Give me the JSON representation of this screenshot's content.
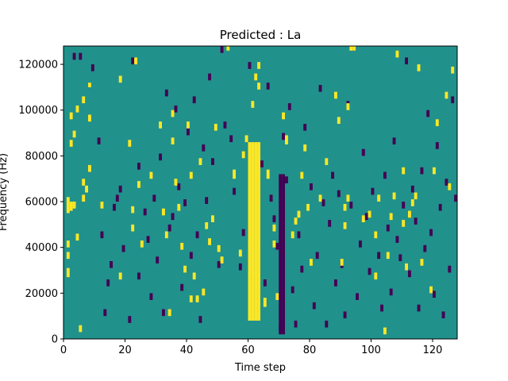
{
  "chart_data": {
    "type": "heatmap",
    "title": "Predicted : La",
    "xlabel": "Time step",
    "ylabel": "Frequency (Hz)",
    "xlim": [
      0,
      128
    ],
    "ylim": [
      0,
      128000
    ],
    "xticks": [
      0,
      20,
      40,
      60,
      80,
      100,
      120
    ],
    "yticks": [
      0,
      20000,
      40000,
      60000,
      80000,
      100000,
      120000
    ],
    "xtick_labels": [
      "0",
      "20",
      "40",
      "60",
      "80",
      "100",
      "120"
    ],
    "ytick_labels": [
      "0",
      "20000",
      "40000",
      "60000",
      "80000",
      "100000",
      "120000"
    ],
    "grid": false,
    "colormap": "viridis",
    "background_value": 0,
    "colors": {
      "low": "#440154",
      "mid": "#21918c",
      "high": "#fde725"
    },
    "grid_shape": {
      "time_steps": 128,
      "frequency_bins": 128,
      "bin_height_hz": 1000
    },
    "high_cells": [
      [
        1,
        27,
        31
      ],
      [
        1,
        35,
        38
      ],
      [
        1,
        55,
        62
      ],
      [
        1,
        40,
        43
      ],
      [
        2,
        56,
        60
      ],
      [
        2,
        84,
        87
      ],
      [
        2,
        96,
        99
      ],
      [
        3,
        88,
        91
      ],
      [
        3,
        57,
        60
      ],
      [
        4,
        99,
        102
      ],
      [
        4,
        43,
        46
      ],
      [
        5,
        3,
        6
      ],
      [
        6,
        103,
        106
      ],
      [
        6,
        60,
        63
      ],
      [
        6,
        67,
        70
      ],
      [
        7,
        64,
        67
      ],
      [
        8,
        73,
        76
      ],
      [
        8,
        95,
        98
      ],
      [
        8,
        110,
        112
      ],
      [
        12,
        57,
        60
      ],
      [
        18,
        112,
        115
      ],
      [
        18,
        26,
        29
      ],
      [
        21,
        84,
        87
      ],
      [
        22,
        47,
        50
      ],
      [
        22,
        55,
        58
      ],
      [
        23,
        120,
        123
      ],
      [
        24,
        66,
        69
      ],
      [
        25,
        40,
        43
      ],
      [
        28,
        70,
        73
      ],
      [
        31,
        92,
        95
      ],
      [
        32,
        54,
        57
      ],
      [
        33,
        44,
        47
      ],
      [
        34,
        10,
        13
      ],
      [
        35,
        85,
        88
      ],
      [
        35,
        97,
        100
      ],
      [
        36,
        67,
        70
      ],
      [
        37,
        56,
        59
      ],
      [
        38,
        39,
        42
      ],
      [
        39,
        29,
        32
      ],
      [
        40,
        92,
        95
      ],
      [
        41,
        70,
        73
      ],
      [
        41,
        16,
        19
      ],
      [
        42,
        26,
        29
      ],
      [
        43,
        16,
        19
      ],
      [
        44,
        76,
        79
      ],
      [
        45,
        19,
        22
      ],
      [
        46,
        48,
        51
      ],
      [
        47,
        41,
        44
      ],
      [
        48,
        51,
        54
      ],
      [
        49,
        91,
        94
      ],
      [
        50,
        38,
        41
      ],
      [
        51,
        33,
        36
      ],
      [
        53,
        126,
        128
      ],
      [
        55,
        70,
        74
      ],
      [
        57,
        36,
        39
      ],
      [
        58,
        79,
        82
      ],
      [
        59,
        86,
        89
      ],
      [
        61,
        101,
        104
      ],
      [
        62,
        113,
        116
      ],
      [
        63,
        109,
        112
      ],
      [
        63,
        118,
        121
      ],
      [
        65,
        14,
        18
      ],
      [
        66,
        70,
        74
      ],
      [
        68,
        40,
        43
      ],
      [
        68,
        47,
        50
      ],
      [
        69,
        17,
        20
      ],
      [
        71,
        96,
        99
      ],
      [
        72,
        85,
        89
      ],
      [
        74,
        44,
        47
      ],
      [
        75,
        50,
        53
      ],
      [
        76,
        53,
        56
      ],
      [
        77,
        70,
        73
      ],
      [
        78,
        82,
        85
      ],
      [
        79,
        56,
        59
      ],
      [
        80,
        32,
        35
      ],
      [
        83,
        60,
        63
      ],
      [
        85,
        76,
        79
      ],
      [
        88,
        105,
        108
      ],
      [
        89,
        94,
        97
      ],
      [
        90,
        32,
        35
      ],
      [
        91,
        48,
        51
      ],
      [
        91,
        56,
        59
      ],
      [
        92,
        60,
        63
      ],
      [
        92,
        100,
        103
      ],
      [
        93,
        126,
        128
      ],
      [
        94,
        126,
        128
      ],
      [
        97,
        51,
        54
      ],
      [
        99,
        53,
        56
      ],
      [
        101,
        26,
        29
      ],
      [
        101,
        44,
        47
      ],
      [
        102,
        60,
        63
      ],
      [
        104,
        2,
        5
      ],
      [
        105,
        35,
        38
      ],
      [
        106,
        52,
        55
      ],
      [
        107,
        61,
        64
      ],
      [
        108,
        123,
        126
      ],
      [
        110,
        49,
        52
      ],
      [
        110,
        72,
        75
      ],
      [
        111,
        30,
        33
      ],
      [
        112,
        53,
        56
      ],
      [
        113,
        58,
        61
      ],
      [
        114,
        61,
        64
      ],
      [
        115,
        117,
        120
      ],
      [
        116,
        32,
        35
      ],
      [
        119,
        20,
        23
      ],
      [
        120,
        72,
        75
      ],
      [
        121,
        93,
        96
      ],
      [
        124,
        105,
        108
      ],
      [
        125,
        65,
        68
      ],
      [
        126,
        116,
        119
      ]
    ],
    "high_band": {
      "x_range": [
        60,
        64
      ],
      "y_range": [
        8000,
        86000
      ]
    },
    "low_cells": [
      [
        3,
        122,
        125
      ],
      [
        5,
        122,
        125
      ],
      [
        9,
        117,
        120
      ],
      [
        11,
        85,
        88
      ],
      [
        12,
        44,
        47
      ],
      [
        13,
        10,
        13
      ],
      [
        14,
        23,
        26
      ],
      [
        15,
        31,
        34
      ],
      [
        16,
        56,
        59
      ],
      [
        17,
        60,
        63
      ],
      [
        18,
        64,
        67
      ],
      [
        19,
        38,
        41
      ],
      [
        21,
        7,
        10
      ],
      [
        22,
        120,
        123
      ],
      [
        24,
        26,
        29
      ],
      [
        24,
        74,
        77
      ],
      [
        26,
        54,
        57
      ],
      [
        27,
        42,
        45
      ],
      [
        28,
        17,
        20
      ],
      [
        29,
        60,
        63
      ],
      [
        30,
        33,
        36
      ],
      [
        31,
        78,
        81
      ],
      [
        32,
        10,
        13
      ],
      [
        33,
        106,
        109
      ],
      [
        34,
        47,
        50
      ],
      [
        35,
        52,
        55
      ],
      [
        36,
        99,
        102
      ],
      [
        37,
        65,
        68
      ],
      [
        38,
        21,
        24
      ],
      [
        39,
        58,
        61
      ],
      [
        40,
        89,
        92
      ],
      [
        41,
        35,
        38
      ],
      [
        42,
        103,
        106
      ],
      [
        43,
        44,
        47
      ],
      [
        44,
        7,
        10
      ],
      [
        45,
        82,
        85
      ],
      [
        46,
        59,
        62
      ],
      [
        47,
        113,
        116
      ],
      [
        48,
        76,
        79
      ],
      [
        50,
        31,
        34
      ],
      [
        51,
        125,
        128
      ],
      [
        52,
        92,
        95
      ],
      [
        54,
        86,
        89
      ],
      [
        55,
        63,
        66
      ],
      [
        57,
        30,
        33
      ],
      [
        58,
        45,
        48
      ],
      [
        60,
        118,
        121
      ],
      [
        60,
        25,
        28
      ],
      [
        62,
        40,
        43
      ],
      [
        64,
        75,
        78
      ],
      [
        65,
        23,
        26
      ],
      [
        66,
        109,
        112
      ],
      [
        67,
        60,
        63
      ],
      [
        68,
        51,
        54
      ],
      [
        69,
        39,
        42
      ],
      [
        70,
        3,
        6
      ],
      [
        71,
        87,
        90
      ],
      [
        72,
        68,
        71
      ],
      [
        73,
        100,
        103
      ],
      [
        74,
        20,
        23
      ],
      [
        75,
        5,
        8
      ],
      [
        76,
        44,
        47
      ],
      [
        77,
        29,
        32
      ],
      [
        78,
        91,
        94
      ],
      [
        80,
        65,
        68
      ],
      [
        81,
        13,
        16
      ],
      [
        82,
        35,
        38
      ],
      [
        83,
        108,
        111
      ],
      [
        84,
        58,
        61
      ],
      [
        85,
        5,
        8
      ],
      [
        86,
        49,
        52
      ],
      [
        87,
        70,
        73
      ],
      [
        88,
        23,
        26
      ],
      [
        89,
        62,
        65
      ],
      [
        90,
        31,
        34
      ],
      [
        91,
        9,
        12
      ],
      [
        92,
        101,
        104
      ],
      [
        93,
        57,
        60
      ],
      [
        94,
        126,
        128
      ],
      [
        95,
        17,
        20
      ],
      [
        96,
        40,
        43
      ],
      [
        97,
        80,
        83
      ],
      [
        98,
        52,
        55
      ],
      [
        99,
        28,
        31
      ],
      [
        100,
        63,
        66
      ],
      [
        102,
        35,
        38
      ],
      [
        103,
        12,
        15
      ],
      [
        104,
        70,
        73
      ],
      [
        105,
        47,
        50
      ],
      [
        106,
        19,
        22
      ],
      [
        107,
        85,
        88
      ],
      [
        108,
        42,
        45
      ],
      [
        109,
        34,
        37
      ],
      [
        110,
        57,
        60
      ],
      [
        111,
        120,
        123
      ],
      [
        112,
        27,
        30
      ],
      [
        113,
        64,
        67
      ],
      [
        114,
        50,
        53
      ],
      [
        115,
        12,
        15
      ],
      [
        116,
        72,
        75
      ],
      [
        117,
        38,
        41
      ],
      [
        118,
        97,
        100
      ],
      [
        119,
        45,
        48
      ],
      [
        120,
        18,
        21
      ],
      [
        121,
        83,
        86
      ],
      [
        122,
        56,
        59
      ],
      [
        123,
        9,
        12
      ],
      [
        124,
        67,
        70
      ],
      [
        125,
        29,
        32
      ],
      [
        126,
        103,
        106
      ],
      [
        127,
        60,
        63
      ]
    ],
    "low_band": {
      "x_range": [
        70,
        72
      ],
      "y_range": [
        2000,
        72000
      ]
    }
  }
}
